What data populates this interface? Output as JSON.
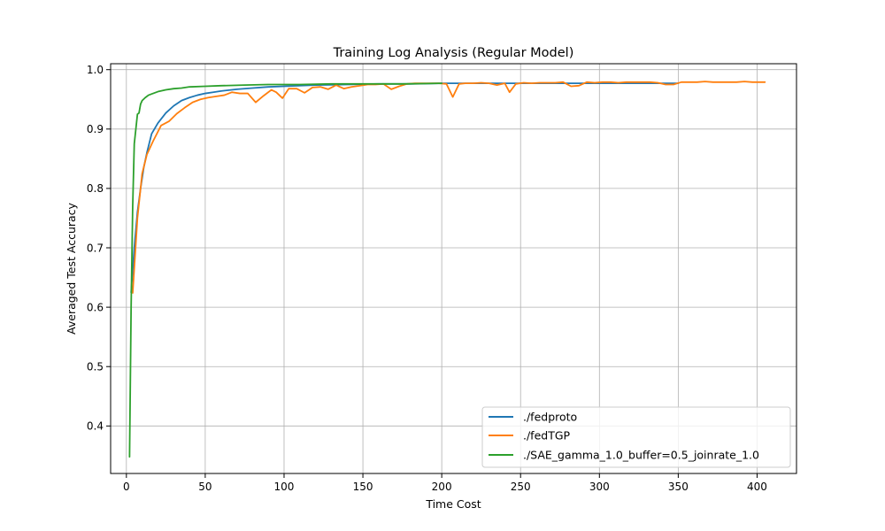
{
  "chart_data": {
    "type": "line",
    "title": "Training Log Analysis (Regular Model)",
    "xlabel": "Time Cost",
    "ylabel": "Averaged Test Accuracy",
    "xlim": [
      -10,
      425
    ],
    "ylim": [
      0.32,
      1.01
    ],
    "xticks": [
      0,
      50,
      100,
      150,
      200,
      250,
      300,
      350,
      400
    ],
    "yticks": [
      0.4,
      0.5,
      0.6,
      0.7,
      0.8,
      0.9,
      1.0
    ],
    "xtick_labels": [
      "0",
      "50",
      "100",
      "150",
      "200",
      "250",
      "300",
      "350",
      "400"
    ],
    "ytick_labels": [
      "0.4",
      "0.5",
      "0.6",
      "0.7",
      "0.8",
      "0.9",
      "1.0"
    ],
    "grid": true,
    "legend_position": "lower-right",
    "series": [
      {
        "name": "./fedproto",
        "color": "#1f77b4",
        "x": [
          3,
          5,
          7,
          9,
          11,
          13,
          16,
          20,
          25,
          30,
          35,
          40,
          45,
          50,
          55,
          60,
          70,
          80,
          90,
          100,
          120,
          140,
          160,
          180,
          200,
          250,
          300,
          350
        ],
        "y": [
          0.625,
          0.7,
          0.76,
          0.8,
          0.835,
          0.86,
          0.892,
          0.91,
          0.927,
          0.939,
          0.948,
          0.953,
          0.957,
          0.96,
          0.962,
          0.964,
          0.967,
          0.969,
          0.971,
          0.972,
          0.974,
          0.975,
          0.976,
          0.976,
          0.977,
          0.977,
          0.977,
          0.977
        ]
      },
      {
        "name": "./fedTGP",
        "color": "#ff7f0e",
        "x": [
          4,
          7,
          10,
          13,
          17,
          22,
          27,
          32,
          37,
          42,
          47,
          52,
          57,
          62,
          67,
          72,
          77,
          82,
          87,
          92,
          95,
          99,
          103,
          108,
          113,
          118,
          123,
          128,
          133,
          138,
          143,
          148,
          153,
          158,
          163,
          168,
          173,
          178,
          183,
          188,
          193,
          198,
          203,
          207,
          211,
          215,
          220,
          225,
          230,
          235,
          240,
          243,
          247,
          252,
          257,
          262,
          267,
          272,
          277,
          282,
          287,
          292,
          297,
          302,
          307,
          312,
          317,
          322,
          327,
          332,
          337,
          342,
          347,
          352,
          357,
          362,
          367,
          372,
          377,
          382,
          387,
          392,
          397,
          402,
          405
        ],
        "y": [
          0.624,
          0.75,
          0.825,
          0.857,
          0.88,
          0.906,
          0.913,
          0.926,
          0.936,
          0.945,
          0.95,
          0.953,
          0.955,
          0.957,
          0.962,
          0.96,
          0.96,
          0.945,
          0.956,
          0.966,
          0.962,
          0.952,
          0.968,
          0.968,
          0.961,
          0.97,
          0.971,
          0.967,
          0.974,
          0.968,
          0.971,
          0.973,
          0.975,
          0.975,
          0.976,
          0.967,
          0.972,
          0.976,
          0.977,
          0.977,
          0.977,
          0.977,
          0.976,
          0.954,
          0.976,
          0.977,
          0.977,
          0.978,
          0.977,
          0.974,
          0.977,
          0.962,
          0.976,
          0.978,
          0.977,
          0.978,
          0.978,
          0.978,
          0.979,
          0.972,
          0.973,
          0.979,
          0.978,
          0.979,
          0.979,
          0.978,
          0.979,
          0.979,
          0.979,
          0.979,
          0.978,
          0.975,
          0.975,
          0.979,
          0.979,
          0.979,
          0.98,
          0.979,
          0.979,
          0.979,
          0.979,
          0.98,
          0.979,
          0.979,
          0.979
        ]
      },
      {
        "name": "./SAE_gamma_1.0_buffer=0.5_joinrate_1.0",
        "color": "#2ca02c",
        "x": [
          2,
          3,
          4,
          5,
          6,
          7,
          8,
          9,
          10,
          12,
          14,
          16,
          20,
          25,
          30,
          35,
          40,
          50,
          60,
          75,
          90,
          110,
          130,
          150,
          175,
          200
        ],
        "y": [
          0.348,
          0.6,
          0.77,
          0.875,
          0.9,
          0.925,
          0.927,
          0.942,
          0.948,
          0.953,
          0.957,
          0.959,
          0.963,
          0.966,
          0.968,
          0.969,
          0.971,
          0.972,
          0.973,
          0.974,
          0.975,
          0.975,
          0.976,
          0.976,
          0.976,
          0.977
        ]
      }
    ]
  }
}
